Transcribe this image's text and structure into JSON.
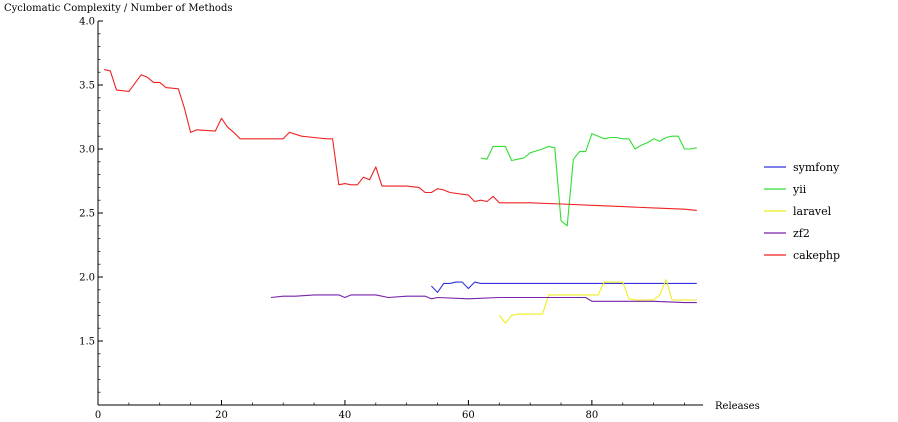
{
  "chart_data": {
    "type": "line",
    "title": "",
    "ylabel": "Cyclomatic Complexity / Number of Methods",
    "xlabel": "Releases",
    "xlim": [
      0,
      98
    ],
    "ylim": [
      1.0,
      4.0
    ],
    "x_ticks": [
      0,
      20,
      40,
      60,
      80
    ],
    "x_tick_labels": [
      "0",
      "20",
      "40",
      "60",
      "80"
    ],
    "y_ticks": [
      1.5,
      2.0,
      2.5,
      3.0,
      3.5,
      4.0
    ],
    "y_tick_labels": [
      "1.5",
      "2.0",
      "2.5",
      "3.0",
      "3.5",
      "4.0"
    ],
    "grid": false,
    "legend_position": "right",
    "series": [
      {
        "name": "symfony",
        "color": "#3333dd",
        "x": [
          54,
          55,
          56,
          57,
          58,
          59,
          60,
          61,
          62,
          65,
          70,
          75,
          80,
          85,
          90,
          95,
          97
        ],
        "y": [
          1.93,
          1.88,
          1.95,
          1.95,
          1.96,
          1.96,
          1.91,
          1.96,
          1.95,
          1.95,
          1.95,
          1.95,
          1.95,
          1.95,
          1.95,
          1.95,
          1.95
        ]
      },
      {
        "name": "yii",
        "color": "#33dd33",
        "x": [
          62,
          63,
          64,
          66,
          67,
          68,
          69,
          70,
          72,
          73,
          74,
          75,
          76,
          77,
          78,
          79,
          80,
          81,
          82,
          83,
          84,
          85,
          86,
          87,
          88,
          89,
          90,
          91,
          92,
          93,
          94,
          95,
          96,
          97
        ],
        "y": [
          2.93,
          2.92,
          3.02,
          3.02,
          2.91,
          2.92,
          2.93,
          2.97,
          3.0,
          3.02,
          3.01,
          2.44,
          2.4,
          2.92,
          2.98,
          2.98,
          3.12,
          3.1,
          3.08,
          3.09,
          3.09,
          3.08,
          3.08,
          3.0,
          3.03,
          3.05,
          3.08,
          3.06,
          3.09,
          3.1,
          3.1,
          3.0,
          3.0,
          3.01
        ]
      },
      {
        "name": "laravel",
        "color": "#eeee22",
        "x": [
          65,
          66,
          67,
          68,
          70,
          72,
          73,
          74,
          75,
          80,
          81,
          82,
          83,
          84,
          85,
          86,
          87,
          88,
          89,
          90,
          91,
          92,
          93,
          95,
          97
        ],
        "y": [
          1.7,
          1.64,
          1.7,
          1.71,
          1.71,
          1.71,
          1.86,
          1.86,
          1.86,
          1.86,
          1.86,
          1.96,
          1.96,
          1.96,
          1.96,
          1.83,
          1.82,
          1.82,
          1.82,
          1.82,
          1.86,
          1.98,
          1.82,
          1.82,
          1.82
        ]
      },
      {
        "name": "zf2",
        "color": "#7722aa",
        "x": [
          28,
          30,
          32,
          35,
          38,
          39,
          40,
          41,
          45,
          47,
          50,
          53,
          54,
          55,
          60,
          65,
          70,
          75,
          79,
          80,
          85,
          90,
          95,
          97
        ],
        "y": [
          1.84,
          1.85,
          1.85,
          1.86,
          1.86,
          1.86,
          1.84,
          1.86,
          1.86,
          1.84,
          1.85,
          1.85,
          1.83,
          1.84,
          1.83,
          1.84,
          1.84,
          1.84,
          1.84,
          1.81,
          1.81,
          1.81,
          1.8,
          1.8
        ]
      },
      {
        "name": "cakephp",
        "color": "#ee2222",
        "x": [
          1,
          2,
          3,
          5,
          7,
          8,
          9,
          10,
          11,
          13,
          14,
          15,
          16,
          19,
          20,
          21,
          22,
          23,
          26,
          30,
          31,
          33,
          35,
          37,
          38,
          39,
          40,
          41,
          42,
          43,
          44,
          45,
          46,
          48,
          50,
          52,
          53,
          54,
          55,
          56,
          57,
          60,
          61,
          62,
          63,
          64,
          65,
          70,
          75,
          80,
          85,
          90,
          95,
          97
        ],
        "y": [
          3.62,
          3.61,
          3.46,
          3.45,
          3.58,
          3.56,
          3.52,
          3.52,
          3.48,
          3.47,
          3.32,
          3.13,
          3.15,
          3.14,
          3.24,
          3.17,
          3.13,
          3.08,
          3.08,
          3.08,
          3.13,
          3.1,
          3.09,
          3.08,
          3.08,
          2.72,
          2.73,
          2.72,
          2.72,
          2.78,
          2.76,
          2.86,
          2.71,
          2.71,
          2.71,
          2.7,
          2.66,
          2.66,
          2.69,
          2.68,
          2.66,
          2.64,
          2.59,
          2.6,
          2.59,
          2.63,
          2.58,
          2.58,
          2.57,
          2.56,
          2.55,
          2.54,
          2.53,
          2.52
        ]
      }
    ]
  }
}
